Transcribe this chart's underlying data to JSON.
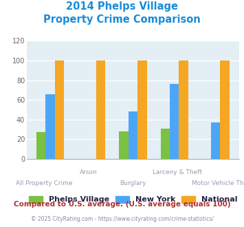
{
  "title_line1": "2014 Phelps Village",
  "title_line2": "Property Crime Comparison",
  "title_color": "#1a8cda",
  "x_label_top": [
    "",
    "Arson",
    "",
    "Larceny & Theft",
    ""
  ],
  "x_label_bottom": [
    "All Property Crime",
    "",
    "Burglary",
    "",
    "Motor Vehicle Theft"
  ],
  "x_label_color": "#9b9bb0",
  "phelps_village": [
    27,
    0,
    28,
    31,
    0
  ],
  "new_york": [
    66,
    0,
    48,
    76,
    37
  ],
  "national": [
    100,
    100,
    100,
    100,
    100
  ],
  "bar_colors": {
    "phelps": "#7bc142",
    "ny": "#4da6f5",
    "national": "#f5a623"
  },
  "ylim": [
    0,
    120
  ],
  "yticks": [
    0,
    20,
    40,
    60,
    80,
    100,
    120
  ],
  "chart_bg": "#e4eef5",
  "legend_labels": [
    "Phelps Village",
    "New York",
    "National"
  ],
  "footer_text1": "Compared to U.S. average. (U.S. average equals 100)",
  "footer_text2": "© 2025 CityRating.com - https://www.cityrating.com/crime-statistics/",
  "footer_color1": "#b03030",
  "footer_color2": "#8888aa"
}
